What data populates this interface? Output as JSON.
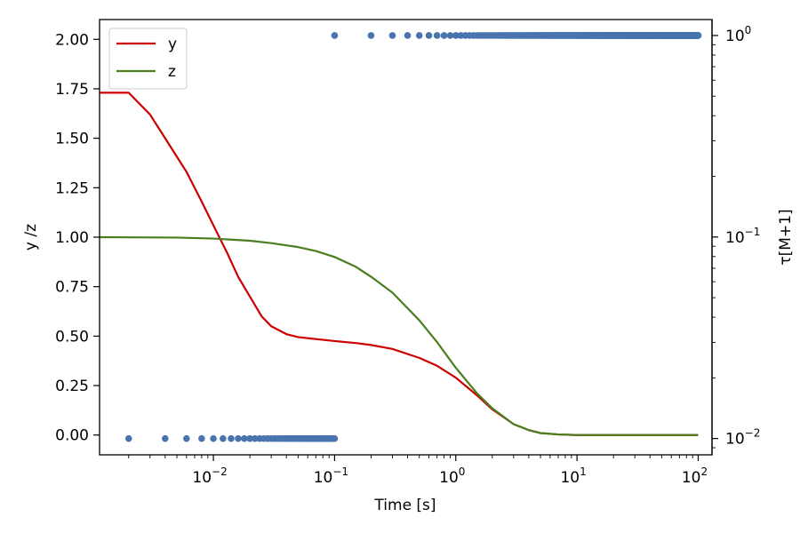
{
  "chart_data": {
    "type": "line",
    "xlabel": "Time [s]",
    "ylabel": "y /z",
    "y2label": "τ[M+1]",
    "xscale": "log",
    "xlim": [
      0.00115,
      130
    ],
    "ylim": [
      -0.1,
      2.1
    ],
    "y2scale": "log",
    "y2lim": [
      0.0083,
      1.2
    ],
    "grid": false,
    "legend_position": "upper-left",
    "x_ticks": [
      {
        "value": 0.01,
        "base": "10",
        "exp": "−2"
      },
      {
        "value": 0.1,
        "base": "10",
        "exp": "−1"
      },
      {
        "value": 1,
        "base": "10",
        "exp": "0"
      },
      {
        "value": 10,
        "base": "10",
        "exp": "1"
      },
      {
        "value": 100,
        "base": "10",
        "exp": "2"
      }
    ],
    "y_ticks": [
      "0.00",
      "0.25",
      "0.50",
      "0.75",
      "1.00",
      "1.25",
      "1.50",
      "1.75",
      "2.00"
    ],
    "y2_ticks": [
      {
        "value": 0.01,
        "base": "10",
        "exp": "−2"
      },
      {
        "value": 0.1,
        "base": "10",
        "exp": "−1"
      },
      {
        "value": 1,
        "base": "10",
        "exp": "0"
      }
    ],
    "series": [
      {
        "name": "y",
        "color": "#cc0000",
        "axis": "left",
        "points": [
          [
            0.00115,
            1.73
          ],
          [
            0.002,
            1.73
          ],
          [
            0.003,
            1.62
          ],
          [
            0.004,
            1.5
          ],
          [
            0.006,
            1.33
          ],
          [
            0.008,
            1.18
          ],
          [
            0.01,
            1.06
          ],
          [
            0.013,
            0.92
          ],
          [
            0.016,
            0.8
          ],
          [
            0.02,
            0.7
          ],
          [
            0.025,
            0.6
          ],
          [
            0.03,
            0.55
          ],
          [
            0.04,
            0.51
          ],
          [
            0.05,
            0.495
          ],
          [
            0.07,
            0.485
          ],
          [
            0.1,
            0.475
          ],
          [
            0.15,
            0.465
          ],
          [
            0.2,
            0.455
          ],
          [
            0.3,
            0.435
          ],
          [
            0.5,
            0.39
          ],
          [
            0.7,
            0.35
          ],
          [
            1.0,
            0.29
          ],
          [
            1.5,
            0.2
          ],
          [
            2.0,
            0.13
          ],
          [
            3.0,
            0.055
          ],
          [
            4.0,
            0.025
          ],
          [
            5.0,
            0.01
          ],
          [
            7.0,
            0.003
          ],
          [
            10,
            0.0
          ],
          [
            100,
            0.0
          ]
        ]
      },
      {
        "name": "z",
        "color": "#4a7f1f",
        "axis": "left",
        "points": [
          [
            0.00115,
            1.0
          ],
          [
            0.005,
            0.998
          ],
          [
            0.01,
            0.993
          ],
          [
            0.02,
            0.982
          ],
          [
            0.03,
            0.97
          ],
          [
            0.05,
            0.95
          ],
          [
            0.07,
            0.93
          ],
          [
            0.1,
            0.9
          ],
          [
            0.15,
            0.85
          ],
          [
            0.2,
            0.8
          ],
          [
            0.3,
            0.72
          ],
          [
            0.5,
            0.58
          ],
          [
            0.7,
            0.47
          ],
          [
            1.0,
            0.34
          ],
          [
            1.5,
            0.21
          ],
          [
            2.0,
            0.135
          ],
          [
            3.0,
            0.055
          ],
          [
            4.0,
            0.025
          ],
          [
            5.0,
            0.01
          ],
          [
            7.0,
            0.003
          ],
          [
            10,
            0.0
          ],
          [
            100,
            0.0
          ]
        ]
      },
      {
        "name": "τ[M+1]",
        "color": "#4a74ad",
        "axis": "right",
        "style": "scatter",
        "segments": [
          {
            "start": 0.002,
            "end": 0.1,
            "step": 0.002,
            "value": 0.01
          },
          {
            "start": 0.1,
            "end": 100,
            "step": 0.1,
            "value": 1.0
          }
        ]
      }
    ]
  }
}
